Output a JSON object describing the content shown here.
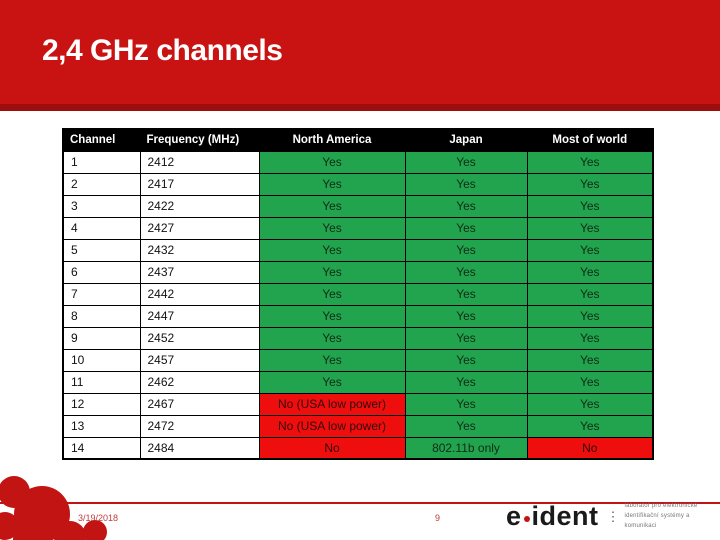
{
  "slide": {
    "title": "2,4 GHz channels",
    "date": "3/19/2018",
    "page_number": "9"
  },
  "table": {
    "columns": [
      "Channel",
      "Frequency (MHz)",
      "North America",
      "Japan",
      "Most of world"
    ],
    "rows": [
      {
        "channel": "1",
        "frequency": "2412",
        "cells": [
          {
            "text": "Yes",
            "status": "yes"
          },
          {
            "text": "Yes",
            "status": "yes"
          },
          {
            "text": "Yes",
            "status": "yes"
          }
        ]
      },
      {
        "channel": "2",
        "frequency": "2417",
        "cells": [
          {
            "text": "Yes",
            "status": "yes"
          },
          {
            "text": "Yes",
            "status": "yes"
          },
          {
            "text": "Yes",
            "status": "yes"
          }
        ]
      },
      {
        "channel": "3",
        "frequency": "2422",
        "cells": [
          {
            "text": "Yes",
            "status": "yes"
          },
          {
            "text": "Yes",
            "status": "yes"
          },
          {
            "text": "Yes",
            "status": "yes"
          }
        ]
      },
      {
        "channel": "4",
        "frequency": "2427",
        "cells": [
          {
            "text": "Yes",
            "status": "yes"
          },
          {
            "text": "Yes",
            "status": "yes"
          },
          {
            "text": "Yes",
            "status": "yes"
          }
        ]
      },
      {
        "channel": "5",
        "frequency": "2432",
        "cells": [
          {
            "text": "Yes",
            "status": "yes"
          },
          {
            "text": "Yes",
            "status": "yes"
          },
          {
            "text": "Yes",
            "status": "yes"
          }
        ]
      },
      {
        "channel": "6",
        "frequency": "2437",
        "cells": [
          {
            "text": "Yes",
            "status": "yes"
          },
          {
            "text": "Yes",
            "status": "yes"
          },
          {
            "text": "Yes",
            "status": "yes"
          }
        ]
      },
      {
        "channel": "7",
        "frequency": "2442",
        "cells": [
          {
            "text": "Yes",
            "status": "yes"
          },
          {
            "text": "Yes",
            "status": "yes"
          },
          {
            "text": "Yes",
            "status": "yes"
          }
        ]
      },
      {
        "channel": "8",
        "frequency": "2447",
        "cells": [
          {
            "text": "Yes",
            "status": "yes"
          },
          {
            "text": "Yes",
            "status": "yes"
          },
          {
            "text": "Yes",
            "status": "yes"
          }
        ]
      },
      {
        "channel": "9",
        "frequency": "2452",
        "cells": [
          {
            "text": "Yes",
            "status": "yes"
          },
          {
            "text": "Yes",
            "status": "yes"
          },
          {
            "text": "Yes",
            "status": "yes"
          }
        ]
      },
      {
        "channel": "10",
        "frequency": "2457",
        "cells": [
          {
            "text": "Yes",
            "status": "yes"
          },
          {
            "text": "Yes",
            "status": "yes"
          },
          {
            "text": "Yes",
            "status": "yes"
          }
        ]
      },
      {
        "channel": "11",
        "frequency": "2462",
        "cells": [
          {
            "text": "Yes",
            "status": "yes"
          },
          {
            "text": "Yes",
            "status": "yes"
          },
          {
            "text": "Yes",
            "status": "yes"
          }
        ]
      },
      {
        "channel": "12",
        "frequency": "2467",
        "cells": [
          {
            "text": "No (USA low power)",
            "status": "no"
          },
          {
            "text": "Yes",
            "status": "yes"
          },
          {
            "text": "Yes",
            "status": "yes"
          }
        ]
      },
      {
        "channel": "13",
        "frequency": "2472",
        "cells": [
          {
            "text": "No (USA low power)",
            "status": "no"
          },
          {
            "text": "Yes",
            "status": "yes"
          },
          {
            "text": "Yes",
            "status": "yes"
          }
        ]
      },
      {
        "channel": "14",
        "frequency": "2484",
        "cells": [
          {
            "text": "No",
            "status": "no"
          },
          {
            "text": "802.11b only",
            "status": "yes"
          },
          {
            "text": "No",
            "status": "no"
          }
        ]
      }
    ]
  },
  "logo": {
    "brand_prefix": "e",
    "brand_suffix": "ident",
    "tagline_line1": "laboratoř pro elektronické",
    "tagline_line2": "identifikační systémy a komunikaci"
  },
  "colors": {
    "theme_red": "#c31414",
    "header_red": "#c91212",
    "header_red_dark": "#9c0d0d",
    "yes_green": "#22a34e",
    "no_red": "#ef0e0e"
  }
}
